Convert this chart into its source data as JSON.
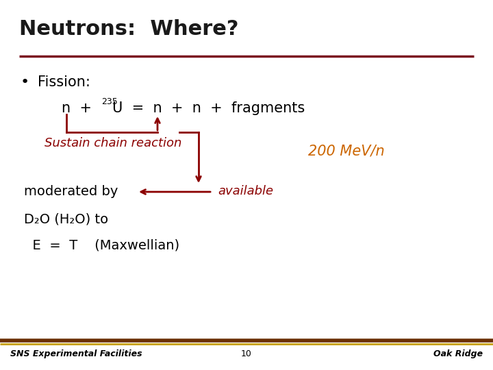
{
  "title": "Neutrons:  Where?",
  "title_color": "#1a1a1a",
  "title_fontsize": 22,
  "bg_color": "#ffffff",
  "dark_red": "#8B0000",
  "orange": "#CC6600",
  "bullet_text": "Fission:",
  "sustain_text": "Sustain chain reaction",
  "mev_text": "200 MeV/n",
  "moderated_text": "moderated by",
  "available_text": "available",
  "d2o_text": "D₂O (H₂O) to",
  "eqt_text": "  E  =  T    (Maxwellian)",
  "footer_left": "SNS Experimental Facilities",
  "footer_center": "10",
  "footer_right": "Oak Ridge",
  "header_line_color": "#7B1020",
  "footer_line_color1": "#6B3000",
  "footer_line_color2": "#C8A000"
}
